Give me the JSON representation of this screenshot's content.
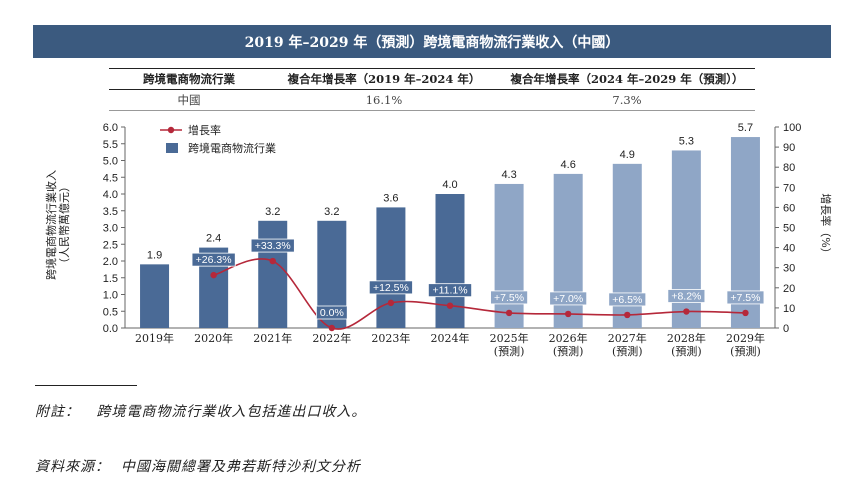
{
  "title": "2019 年–2029 年（預測）跨境電商物流行業收入（中國）",
  "cagr_table": {
    "headers": [
      "跨境電商物流行業",
      "複合年增長率（2019 年–2024 年）",
      "複合年增長率（2024 年–2029 年（預測））"
    ],
    "row": [
      "中國",
      "16.1%",
      "7.3%"
    ]
  },
  "chart_data": {
    "type": "bar",
    "categories": [
      "2019年",
      "2020年",
      "2021年",
      "2022年",
      "2023年",
      "2024年",
      "2025年\n(預測)",
      "2026年\n(預測)",
      "2027年\n(預測)",
      "2028年\n(預測)",
      "2029年\n(預測)"
    ],
    "series": [
      {
        "name": "跨境電商物流行業",
        "type": "bar",
        "axis": "left",
        "values": [
          1.9,
          2.4,
          3.2,
          3.2,
          3.6,
          4.0,
          4.3,
          4.6,
          4.9,
          5.3,
          5.7
        ],
        "value_labels": [
          "1.9",
          "2.4",
          "3.2",
          "3.2",
          "3.6",
          "4.0",
          "4.3",
          "4.6",
          "4.9",
          "5.3",
          "5.7"
        ]
      },
      {
        "name": "增長率",
        "type": "line",
        "axis": "right",
        "values": [
          null,
          26.3,
          33.3,
          0.0,
          12.5,
          11.1,
          7.5,
          7.0,
          6.5,
          8.2,
          7.5
        ],
        "value_labels": [
          "",
          "+26.3%",
          "+33.3%",
          "0.0%",
          "+12.5%",
          "+11.1%",
          "+7.5%",
          "+7.0%",
          "+6.5%",
          "+8.2%",
          "+7.5%"
        ]
      }
    ],
    "ylabel": "跨境電商物流行業收入\n（人民幣萬億元）",
    "ylabel_right": "增長率（%）",
    "ylim": [
      0,
      6.0
    ],
    "ylim_right": [
      0,
      100
    ],
    "yticks": [
      "0.0",
      "0.5",
      "1.0",
      "1.5",
      "2.0",
      "2.5",
      "3.0",
      "3.5",
      "4.0",
      "4.5",
      "5.0",
      "5.5",
      "6.0"
    ],
    "yticks_right": [
      "0",
      "10",
      "20",
      "30",
      "40",
      "50",
      "60",
      "70",
      "80",
      "90",
      "100"
    ],
    "legend_position": "top-left",
    "colors": {
      "historical": "#4a6a96",
      "forecast": "#8fa6c6",
      "line": "#b5283a"
    }
  },
  "footnote": {
    "label": "附註：",
    "text": "跨境電商物流行業收入包括進出口收入。"
  },
  "source": {
    "label": "資料來源：",
    "text": "中國海關總署及弗若斯特沙利文分析"
  }
}
